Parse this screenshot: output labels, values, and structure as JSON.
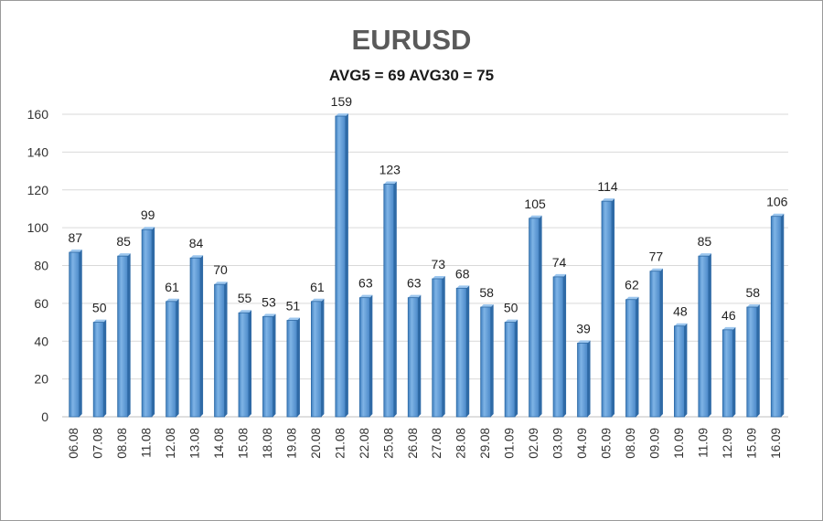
{
  "chart_data": {
    "type": "bar",
    "title": "EURUSD",
    "subtitle": "AVG5 = 69 AVG30 = 75",
    "xlabel": "",
    "ylabel": "",
    "ylim": [
      0,
      160
    ],
    "yticks": [
      0,
      20,
      40,
      60,
      80,
      100,
      120,
      140,
      160
    ],
    "grid": true,
    "legend": "none",
    "bar_color": "#5b9bd5",
    "categories": [
      "06.08",
      "07.08",
      "08.08",
      "11.08",
      "12.08",
      "13.08",
      "14.08",
      "15.08",
      "18.08",
      "19.08",
      "20.08",
      "21.08",
      "22.08",
      "25.08",
      "26.08",
      "27.08",
      "28.08",
      "29.08",
      "01.09",
      "02.09",
      "03.09",
      "04.09",
      "05.09",
      "08.09",
      "09.09",
      "10.09",
      "11.09",
      "12.09",
      "15.09",
      "16.09"
    ],
    "values": [
      87,
      50,
      85,
      99,
      61,
      84,
      70,
      55,
      53,
      51,
      61,
      159,
      63,
      123,
      63,
      73,
      68,
      58,
      50,
      105,
      74,
      39,
      114,
      62,
      77,
      48,
      85,
      46,
      58,
      106
    ]
  }
}
